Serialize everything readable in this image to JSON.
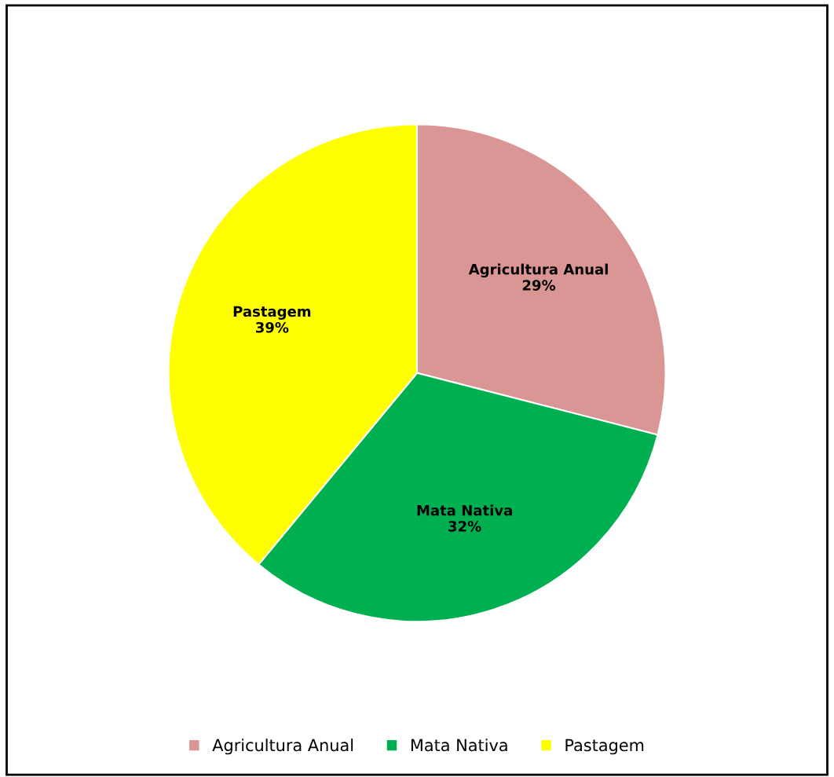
{
  "chart_data": {
    "type": "pie",
    "categories": [
      "Agricultura Anual",
      "Mata Nativa",
      "Pastagem"
    ],
    "values": [
      29,
      32,
      39
    ],
    "colors": [
      "#d99694",
      "#00b050",
      "#ffff00"
    ],
    "value_labels": [
      "29%",
      "32%",
      "39%"
    ],
    "legend": "bottom"
  }
}
